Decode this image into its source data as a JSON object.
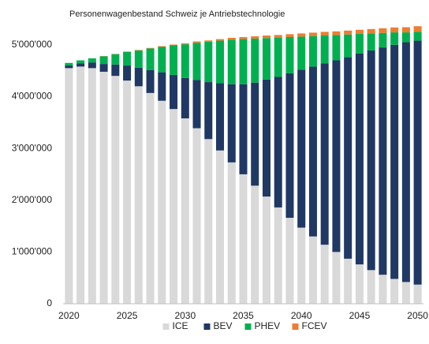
{
  "chart_data": {
    "type": "stacked_bar",
    "title": "Personenwagenbestand Schweiz je Antriebstechnologie",
    "x": [
      2020,
      2021,
      2022,
      2023,
      2024,
      2025,
      2026,
      2027,
      2028,
      2029,
      2030,
      2031,
      2032,
      2033,
      2034,
      2035,
      2036,
      2037,
      2038,
      2039,
      2040,
      2041,
      2042,
      2043,
      2044,
      2045,
      2046,
      2047,
      2048,
      2049,
      2050
    ],
    "series": [
      {
        "name": "ICE",
        "color": "#d9d9d9",
        "values": [
          4550000,
          4580000,
          4550000,
          4480000,
          4400000,
          4310000,
          4200000,
          4070000,
          3920000,
          3760000,
          3580000,
          3390000,
          3180000,
          2960000,
          2730000,
          2500000,
          2280000,
          2070000,
          1860000,
          1660000,
          1470000,
          1300000,
          1140000,
          1000000,
          870000,
          760000,
          650000,
          560000,
          480000,
          420000,
          370000
        ]
      },
      {
        "name": "BEV",
        "color": "#203864",
        "values": [
          50000,
          60000,
          110000,
          150000,
          220000,
          290000,
          360000,
          440000,
          550000,
          660000,
          780000,
          930000,
          1100000,
          1300000,
          1510000,
          1740000,
          1990000,
          2260000,
          2520000,
          2790000,
          3050000,
          3280000,
          3500000,
          3700000,
          3890000,
          4070000,
          4240000,
          4390000,
          4520000,
          4630000,
          4710000
        ]
      },
      {
        "name": "PHEV",
        "color": "#00b050",
        "values": [
          50000,
          60000,
          80000,
          150000,
          200000,
          260000,
          330000,
          420000,
          490000,
          570000,
          650000,
          720000,
          780000,
          820000,
          860000,
          870000,
          850000,
          800000,
          760000,
          700000,
          640000,
          590000,
          540000,
          490000,
          440000,
          380000,
          330000,
          280000,
          240000,
          190000,
          170000
        ]
      },
      {
        "name": "FCEV",
        "color": "#ed7d31",
        "values": [
          0,
          0,
          0,
          5000,
          5000,
          10000,
          10000,
          10000,
          15000,
          15000,
          20000,
          25000,
          25000,
          30000,
          35000,
          40000,
          45000,
          50000,
          50000,
          55000,
          60000,
          65000,
          70000,
          70000,
          75000,
          80000,
          85000,
          90000,
          95000,
          100000,
          110000
        ]
      }
    ],
    "xlim": [
      2019.5,
      2050.5
    ],
    "xticks": [
      2020,
      2025,
      2030,
      2035,
      2040,
      2045,
      2050
    ],
    "ylim": [
      0,
      5500000
    ],
    "yticks": [
      0,
      {
        "value": 1000000,
        "label": "1'000'000"
      },
      {
        "value": 2000000,
        "label": "2'000'000"
      },
      {
        "value": 3000000,
        "label": "3'000'000"
      },
      {
        "value": 4000000,
        "label": "4'000'000"
      },
      {
        "value": 5000000,
        "label": "5'000'000"
      }
    ],
    "grid": false,
    "legend": "bottom"
  }
}
